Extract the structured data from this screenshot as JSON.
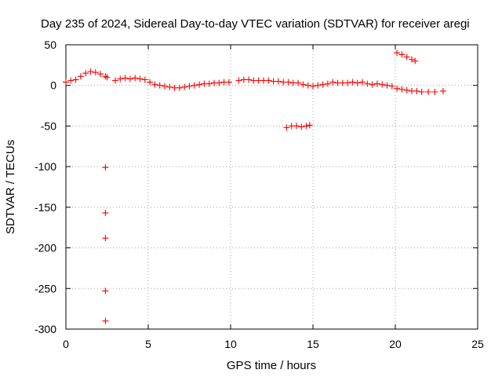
{
  "chart_data": {
    "type": "scatter",
    "title": "Day 235 of 2024, Sidereal Day-to-day VTEC variation (SDTVAR) for receiver aregi",
    "xlabel": "GPS time / hours",
    "ylabel": "SDTVAR / TECUs",
    "xlim": [
      0,
      25
    ],
    "ylim": [
      -300,
      50
    ],
    "xticks": [
      0,
      5,
      10,
      15,
      20,
      25
    ],
    "yticks": [
      50,
      0,
      -50,
      -100,
      -150,
      -200,
      -250,
      -300
    ],
    "grid": true,
    "marker": "+",
    "color": "#ff0000",
    "series": [
      {
        "name": "SDTVAR",
        "segments": [
          {
            "x": [
              0.0,
              0.3,
              0.6,
              0.9,
              1.2,
              1.5,
              1.8,
              2.1,
              2.4,
              2.5
            ],
            "y": [
              4,
              6,
              7,
              11,
              15,
              17,
              16,
              14,
              11,
              10
            ]
          },
          {
            "x": [
              3.0,
              3.3,
              3.6,
              3.9,
              4.2,
              4.5,
              4.8,
              5.1,
              5.4,
              5.7,
              6.0,
              6.3,
              6.6,
              6.9
            ],
            "y": [
              6,
              8,
              9,
              8,
              9,
              8,
              7,
              4,
              1,
              0,
              -1,
              -2,
              -3,
              -3
            ]
          },
          {
            "x": [
              7.2,
              7.5,
              7.8,
              8.1,
              8.4,
              8.7,
              9.0,
              9.3,
              9.6,
              9.9
            ],
            "y": [
              -2,
              -1,
              0,
              1,
              2,
              2,
              3,
              3,
              4,
              4
            ]
          },
          {
            "x": [
              10.5,
              10.8,
              11.1,
              11.4,
              11.7,
              12.0,
              12.3,
              12.6,
              12.9,
              13.2,
              13.5,
              13.8,
              14.1,
              14.4,
              14.7,
              15.0,
              15.3,
              15.6,
              15.9
            ],
            "y": [
              6,
              7,
              7,
              6,
              6,
              6,
              6,
              5,
              5,
              4,
              4,
              3,
              3,
              1,
              0,
              -1,
              0,
              1,
              2
            ]
          },
          {
            "x": [
              16.2,
              16.5,
              16.8,
              17.1,
              17.4,
              17.7,
              18.0,
              18.3,
              18.6,
              18.9,
              19.2,
              19.5,
              19.8
            ],
            "y": [
              4,
              3,
              3,
              3,
              4,
              3,
              4,
              2,
              1,
              2,
              1,
              0,
              -1
            ]
          },
          {
            "x": [
              20.1,
              20.4,
              20.7,
              21.0,
              21.3,
              21.6,
              22.0,
              22.4,
              22.9
            ],
            "y": [
              -4,
              -5,
              -6,
              -7,
              -7,
              -8,
              -8,
              -8,
              -7
            ]
          },
          {
            "x": [
              20.1,
              20.4,
              20.7,
              21.0,
              21.2
            ],
            "y": [
              40,
              38,
              35,
              32,
              30
            ]
          },
          {
            "x": [
              13.4,
              13.7,
              14.0,
              14.3,
              14.6,
              14.8
            ],
            "y": [
              -52,
              -50,
              -50,
              -51,
              -50,
              -49
            ]
          },
          {
            "x": [
              2.4,
              2.4,
              2.4,
              2.4,
              2.4
            ],
            "y": [
              -101,
              -157,
              -188,
              -253,
              -290
            ]
          }
        ]
      }
    ]
  }
}
